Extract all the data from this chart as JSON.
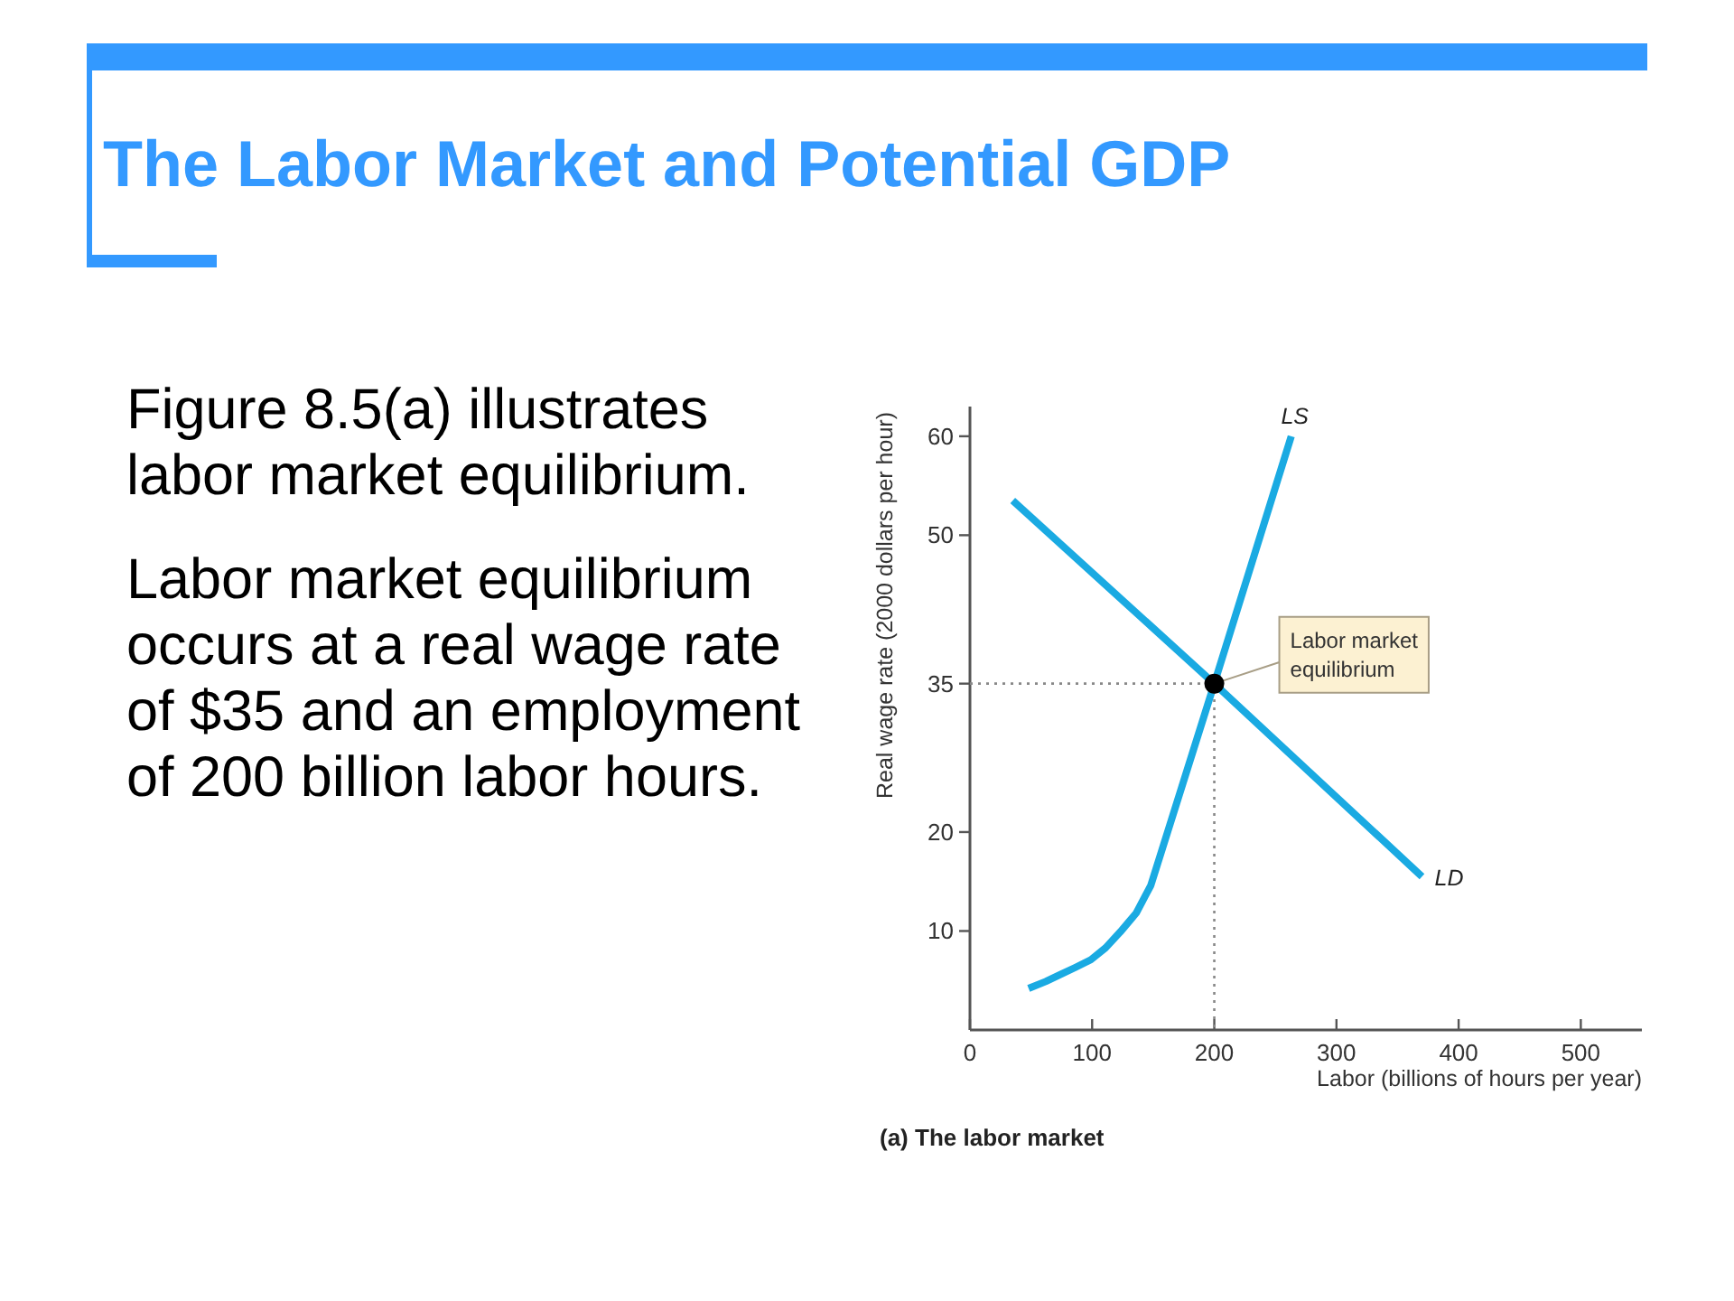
{
  "chart_data": {
    "type": "line",
    "title": "The Labor Market and Potential GDP",
    "xlabel": "Labor (billions of hours per year)",
    "ylabel": "Real wage rate (2000 dollars per hour)",
    "xlim": [
      0,
      550
    ],
    "ylim": [
      0,
      63
    ],
    "xticks": [
      0,
      100,
      200,
      300,
      400,
      500
    ],
    "yticks": [
      10,
      20,
      35,
      50,
      60
    ],
    "series": [
      {
        "name": "LS",
        "color": "#1aaae2",
        "x": [
          48,
          62,
          74,
          86,
          99,
          111,
          123,
          136,
          148,
          200,
          263
        ],
        "values": [
          4.2,
          4.9,
          5.6,
          6.3,
          7.1,
          8.3,
          9.9,
          11.8,
          14.6,
          35,
          60
        ]
      },
      {
        "name": "LD",
        "color": "#1aaae2",
        "x": [
          35,
          200,
          370
        ],
        "values": [
          53.5,
          35,
          15.5
        ]
      },
      {
        "type": "line",
        "color": "#888888",
        "line_style": "dotted",
        "x": [
          0,
          200,
          200
        ],
        "values": [
          35,
          35,
          0
        ]
      },
      {
        "type": "scatter",
        "color": "#000000",
        "marker": "circle",
        "x": [
          200
        ],
        "values": [
          35
        ]
      }
    ],
    "annotations": [
      "Figure 8.5(a) illustrates labor market equilibrium.",
      "Labor market equilibrium occurs at a real wage rate of $35 and an employment of 200 billion labor hours.",
      "(a) The labor market",
      {
        "text": "Labor market equilibrium",
        "x": 200,
        "y": 35
      }
    ]
  }
}
